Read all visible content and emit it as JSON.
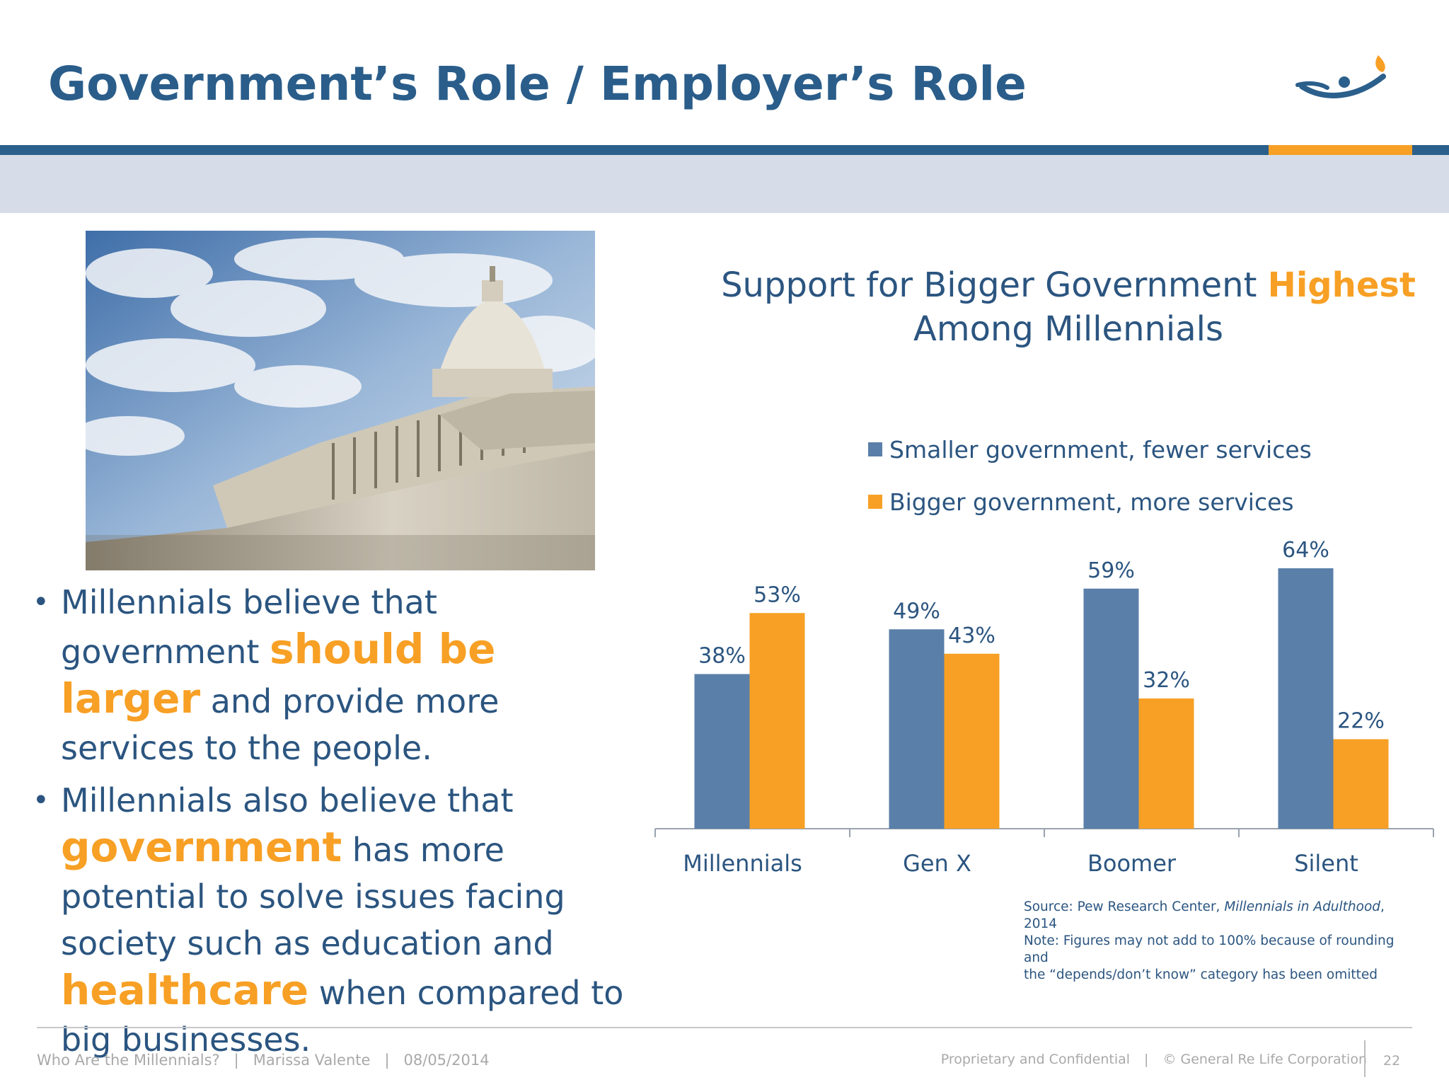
{
  "slide": {
    "title": "Government’s Role / Employer’s Role"
  },
  "bullets": [
    {
      "parts": [
        {
          "text": "Millennials believe that government ",
          "hl": false
        },
        {
          "text": "should be larger",
          "hl": true
        },
        {
          "text": " and provide more services to the people.",
          "hl": false
        }
      ]
    },
    {
      "parts": [
        {
          "text": "Millennials also believe that ",
          "hl": false
        },
        {
          "text": "government",
          "hl": true
        },
        {
          "text": " has more potential to solve issues facing society such as education and ",
          "hl": false
        },
        {
          "text": "healthcare",
          "hl": true
        },
        {
          "text": " when compared to big businesses.",
          "hl": false
        }
      ]
    }
  ],
  "chart_data": {
    "type": "bar",
    "title_prefix": "Support for Bigger Government ",
    "title_highlight": "Highest",
    "title_suffix": "Among Millennials",
    "categories": [
      "Millennials",
      "Gen X",
      "Boomer",
      "Silent"
    ],
    "series": [
      {
        "name": "Smaller government, fewer services",
        "values": [
          38,
          49,
          59,
          64
        ],
        "color": "#5a7fa9"
      },
      {
        "name": "Bigger government, more services",
        "values": [
          53,
          43,
          32,
          22
        ],
        "color": "#f7a025"
      }
    ],
    "value_suffix": "%",
    "ylim": [
      0,
      100
    ],
    "grid": false,
    "legend": "top"
  },
  "source": {
    "line1_prefix": "Source:  Pew Research Center, ",
    "line1_italic": "Millennials in Adulthood",
    "line1_suffix": ", 2014",
    "line2": "Note: Figures may not add to 100% because of rounding and",
    "line3": "the “depends/don’t know” category has been omitted"
  },
  "footer": {
    "deck": "Who Are the Millennials?",
    "author": "Marissa Valente",
    "date": "08/05/2014",
    "confidential": "Proprietary and Confidential",
    "company": "© General Re Life Corporation",
    "page": "22",
    "separator": "|"
  },
  "colors": {
    "accent_blue": "#2b5f8c",
    "accent_orange": "#f7a025",
    "band": "#d6dde8"
  }
}
